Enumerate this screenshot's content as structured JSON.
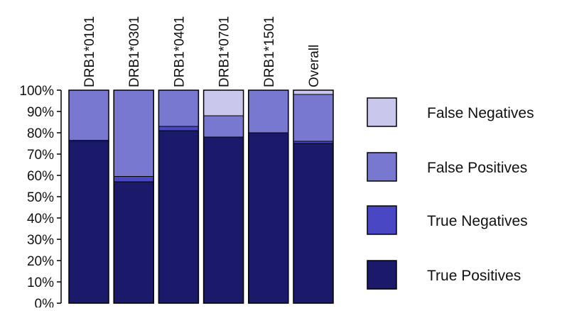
{
  "chart_data": {
    "type": "bar",
    "stacked": true,
    "percent": true,
    "title": "",
    "xlabel": "",
    "ylabel": "",
    "ylim": [
      0,
      100
    ],
    "yticks": [
      "0%",
      "10%",
      "20%",
      "30%",
      "40%",
      "50%",
      "60%",
      "70%",
      "80%",
      "90%",
      "100%"
    ],
    "categories": [
      "DRB1*0101",
      "DRB1*0301",
      "DRB1*0401",
      "DRB1*0701",
      "DRB1*1501",
      "Overall"
    ],
    "series": [
      {
        "name": "True Positives",
        "color": "#1b1a6a",
        "values": [
          76,
          57,
          81,
          78,
          80,
          75
        ]
      },
      {
        "name": "True Negatives",
        "color": "#4a47c4",
        "values": [
          0.5,
          2.5,
          2,
          0,
          0,
          1
        ]
      },
      {
        "name": "False Positives",
        "color": "#7878d0",
        "values": [
          23.5,
          40.5,
          17,
          10,
          20,
          22
        ]
      },
      {
        "name": "False Negatives",
        "color": "#c9c8ec",
        "values": [
          0,
          0,
          0,
          12,
          0,
          2
        ]
      }
    ],
    "legend": {
      "position": "right",
      "order": [
        "False Negatives",
        "False Positives",
        "True Negatives",
        "True Positives"
      ]
    },
    "grid": false
  }
}
